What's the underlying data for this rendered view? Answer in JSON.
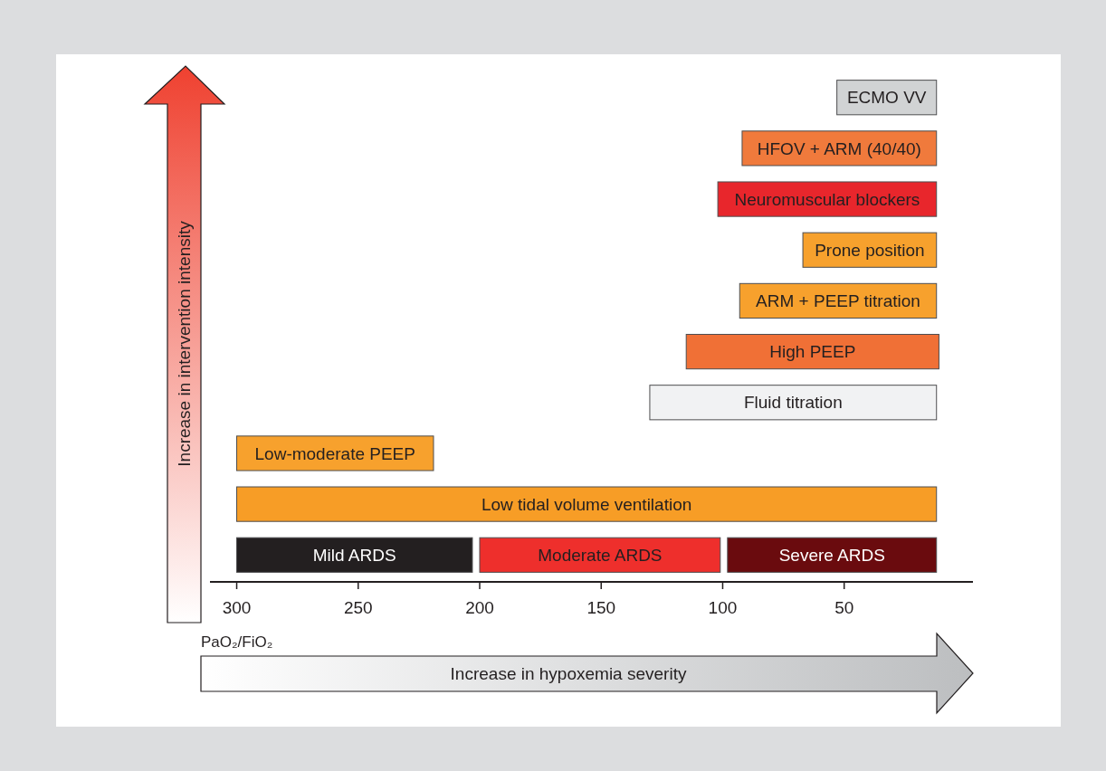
{
  "chart_data": {
    "type": "bar",
    "orientation": "horizontal",
    "xlabel": "PaO₂/FiO₂",
    "ylabel": "Increase in intervention intensity",
    "annotations": [
      "Increase in hypoxemia severity"
    ],
    "categories": [
      "ECMO VV",
      "HFOV + ARM (40/40)",
      "Neuromuscular blockers",
      "Prone position",
      "ARM + PEEP titration",
      "High PEEP",
      "Fluid titration",
      "Low-moderate PEEP",
      "Low tidal volume ventilation",
      null
    ],
    "series": [
      {
        "colors": [
          "#d1d3d4",
          "#f07a3c",
          "#e8262c",
          "#f7a12d",
          "#f7a12d",
          "#f07036",
          "#f1f2f3",
          "#f7a12d",
          "#f79d26",
          null
        ],
        "base": [
          12,
          12,
          12,
          12,
          12,
          11,
          12,
          219,
          12,
          null
        ],
        "values": [
          41,
          80,
          90,
          55,
          81,
          104,
          118,
          81,
          288,
          null
        ]
      },
      {
        "name": "Mild ARDS",
        "color": "#231f20",
        "base": [
          null,
          null,
          null,
          null,
          null,
          null,
          null,
          null,
          null,
          203
        ],
        "values": [
          null,
          null,
          null,
          null,
          null,
          null,
          null,
          null,
          null,
          97
        ]
      },
      {
        "name": "Moderate ARDS",
        "color": "#ee2f2c",
        "base": [
          null,
          null,
          null,
          null,
          null,
          null,
          null,
          null,
          null,
          101
        ],
        "values": [
          null,
          null,
          null,
          null,
          null,
          null,
          null,
          null,
          null,
          99
        ]
      },
      {
        "name": "Severe ARDS",
        "color": "#6a0b0e",
        "base": [
          null,
          null,
          null,
          null,
          null,
          null,
          null,
          null,
          null,
          12
        ],
        "values": [
          null,
          null,
          null,
          null,
          null,
          null,
          null,
          null,
          null,
          86
        ]
      }
    ],
    "xlim": [
      311,
      -3
    ],
    "xticks": [
      300,
      250,
      200,
      150,
      100,
      50
    ]
  }
}
